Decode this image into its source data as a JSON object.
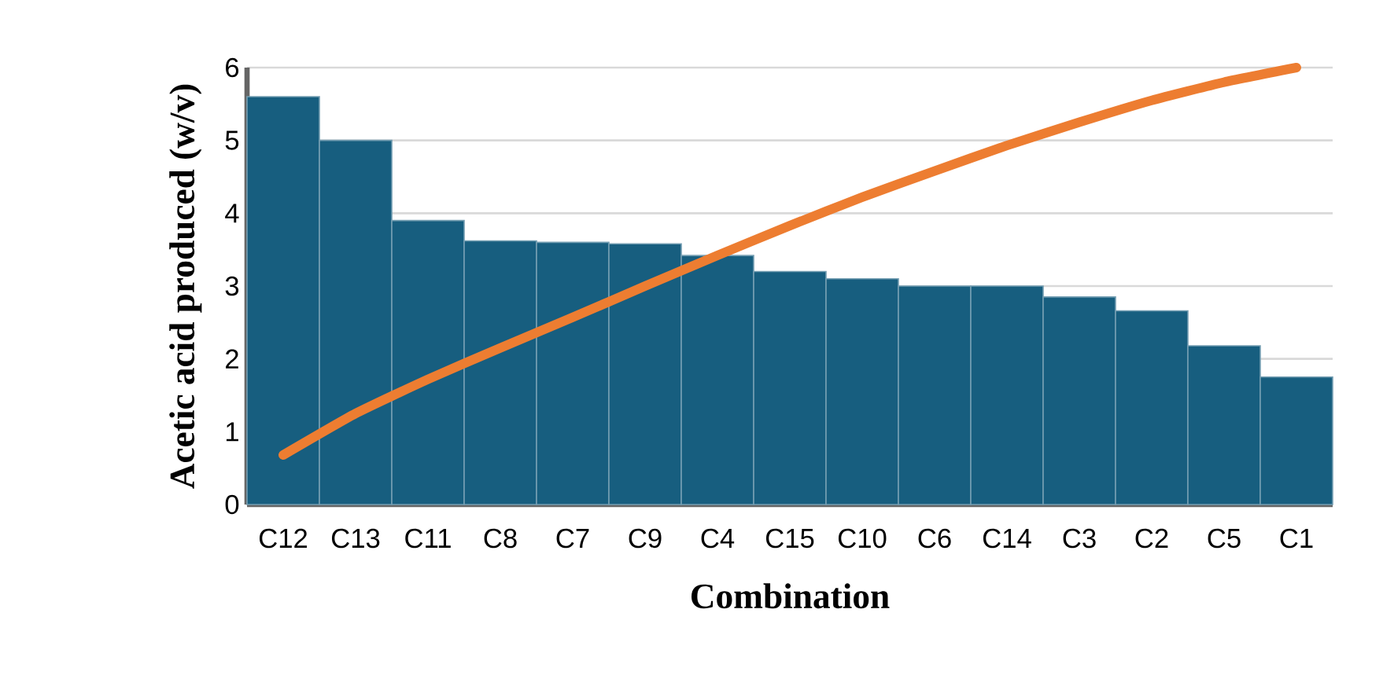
{
  "chart_data": {
    "type": "bar",
    "xlabel": "Combination",
    "ylabel": "Acetic acid produced (w/v)",
    "categories": [
      "C12",
      "C13",
      "C11",
      "C8",
      "C7",
      "C9",
      "C4",
      "C15",
      "C10",
      "C6",
      "C14",
      "C3",
      "C2",
      "C5",
      "C1"
    ],
    "series": [
      {
        "color": "#175e7f",
        "values": [
          5.6,
          5.0,
          3.9,
          3.62,
          3.6,
          3.58,
          3.42,
          3.2,
          3.1,
          3.0,
          3.0,
          2.85,
          2.66,
          2.18,
          1.75
        ]
      },
      {
        "type": "line",
        "color": "#ed7d31",
        "values": [
          0.68,
          1.25,
          1.72,
          2.15,
          2.57,
          3.0,
          3.42,
          3.83,
          4.22,
          4.58,
          4.93,
          5.25,
          5.55,
          5.8,
          6.0
        ]
      }
    ],
    "ylim": [
      0,
      6
    ],
    "yticks": [
      0,
      1,
      2,
      3,
      4,
      5,
      6
    ],
    "grid": "y"
  }
}
